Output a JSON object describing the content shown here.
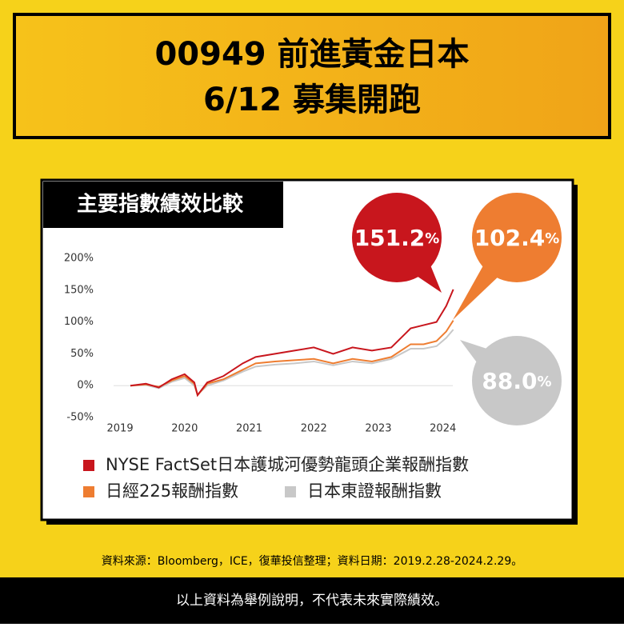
{
  "banner": {
    "line1": "00949 前進黃金日本",
    "line2": "6/12 募集開跑"
  },
  "chart_data": {
    "type": "line",
    "title": "主要指數績效比較",
    "x": [
      2019.16,
      2019.4,
      2019.6,
      2019.8,
      2020.0,
      2020.15,
      2020.2,
      2020.35,
      2020.6,
      2020.9,
      2021.1,
      2021.4,
      2021.7,
      2022.0,
      2022.3,
      2022.6,
      2022.9,
      2023.2,
      2023.5,
      2023.7,
      2023.9,
      2024.05,
      2024.16
    ],
    "series": [
      {
        "name": "NYSE FactSet日本護城河優勢龍頭企業報酬指數",
        "color": "#c8161d",
        "callout": "151.2",
        "callout_unit": "%",
        "values": [
          0,
          3,
          -3,
          10,
          18,
          5,
          -15,
          5,
          15,
          35,
          45,
          50,
          55,
          60,
          50,
          60,
          55,
          60,
          90,
          95,
          100,
          125,
          151.2
        ]
      },
      {
        "name": "日經225報酬指數",
        "color": "#ee7d31",
        "callout": "102.4",
        "callout_unit": "%",
        "values": [
          0,
          2,
          -2,
          8,
          15,
          3,
          -15,
          3,
          10,
          25,
          35,
          38,
          40,
          42,
          35,
          42,
          38,
          45,
          65,
          65,
          70,
          85,
          102.4
        ]
      },
      {
        "name": "日本東證報酬指數",
        "color": "#c8c8c8",
        "callout": "88.0",
        "callout_unit": "%",
        "values": [
          0,
          1,
          -4,
          6,
          12,
          0,
          -14,
          0,
          8,
          22,
          30,
          33,
          35,
          38,
          32,
          38,
          35,
          42,
          58,
          58,
          62,
          75,
          88
        ]
      }
    ],
    "xlim": [
      2018.9,
      2024.4
    ],
    "xticks": [
      2019,
      2020,
      2021,
      2022,
      2023,
      2024
    ],
    "ylim": [
      -50,
      200
    ],
    "yticks": [
      {
        "value": 200,
        "label": "200%"
      },
      {
        "value": 150,
        "label": "150%"
      },
      {
        "value": 100,
        "label": "100%"
      },
      {
        "value": 50,
        "label": "50%"
      },
      {
        "value": 0,
        "label": "0%"
      },
      {
        "value": -50,
        "label": "-50%"
      }
    ]
  },
  "source": "資料來源：Bloomberg，ICE，復華投信整理；資料日期：2019.2.28-2024.2.29。",
  "disclaimer": "以上資料為舉例說明，不代表未來實際績效。"
}
